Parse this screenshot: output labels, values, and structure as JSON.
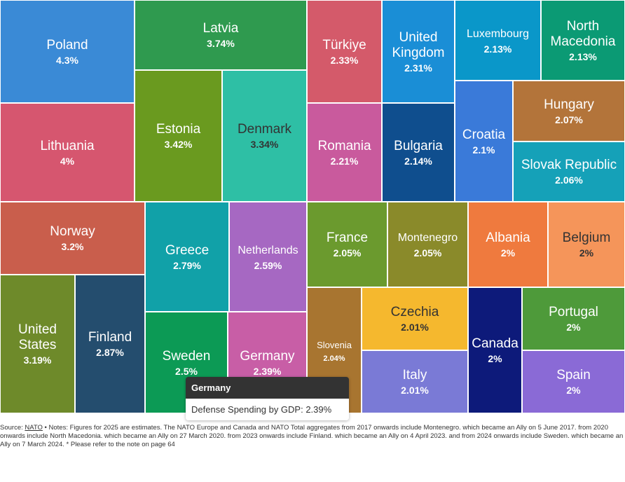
{
  "chart_data": {
    "type": "treemap",
    "categories": [
      "Poland",
      "Latvia",
      "Estonia",
      "Denmark",
      "Lithuania",
      "Türkiye",
      "United Kingdom",
      "Luxembourg",
      "North Macedonia",
      "Romania",
      "Bulgaria",
      "Croatia",
      "Hungary",
      "Slovak Republic",
      "Norway",
      "United States",
      "Finland",
      "Greece",
      "Netherlands",
      "Sweden",
      "Germany",
      "France",
      "Montenegro",
      "Albania",
      "Belgium",
      "Slovenia",
      "Czechia",
      "Italy",
      "Canada",
      "Portugal",
      "Spain"
    ],
    "values": [
      4.3,
      3.74,
      3.42,
      3.34,
      4,
      2.33,
      2.31,
      2.13,
      2.13,
      2.21,
      2.14,
      2.1,
      2.07,
      2.06,
      3.2,
      3.19,
      2.87,
      2.79,
      2.59,
      2.5,
      2.39,
      2.05,
      2.05,
      2,
      2,
      2.04,
      2.01,
      2.01,
      2,
      2,
      2
    ],
    "value_labels": [
      "4.3%",
      "3.74%",
      "3.42%",
      "3.34%",
      "4%",
      "2.33%",
      "2.31%",
      "2.13%",
      "2.13%",
      "2.21%",
      "2.14%",
      "2.1%",
      "2.07%",
      "2.06%",
      "3.2%",
      "3.19%",
      "2.87%",
      "2.79%",
      "2.59%",
      "2.5%",
      "2.39%",
      "2.05%",
      "2.05%",
      "2%",
      "2%",
      "2.04%",
      "2.01%",
      "2.01%",
      "2%",
      "2%",
      "2%"
    ],
    "colors": [
      "#3a8ad6",
      "#2f9a4f",
      "#6a9a1f",
      "#2ebfa5",
      "#d6566f",
      "#d45a6a",
      "#1a8ed6",
      "#0a97c9",
      "#0b9a74",
      "#c95a9d",
      "#0f4e8e",
      "#3a7ad9",
      "#b3743a",
      "#15a1b8",
      "#c95e4c",
      "#6e8a2a",
      "#244d6e",
      "#11a1a8",
      "#a668c2",
      "#0c9a55",
      "#c85ea6",
      "#6b9a2e",
      "#8a8a2a",
      "#ef7a3e",
      "#f5955a",
      "#a87530",
      "#f5b82e",
      "#7a7ad6",
      "#0d1a7a",
      "#4e9a3a",
      "#8a6ad6"
    ],
    "tooltip": {
      "title": "Germany",
      "text": "Defense Spending by GDP: 2.39%"
    },
    "source_label": "Source:",
    "source_link": "NATO",
    "notes": "• Notes: Figures for 2025 are estimates. The NATO Europe and Canada and NATO Total aggregates from 2017 onwards include Montenegro. which became an Ally on 5 June 2017. from 2020 onwards include North Macedonia. which became an Ally on 27 March 2020. from 2023 onwards include Finland. which became an Ally on 4 April 2023. and from 2024 onwards include Sweden. which became an Ally on 7 March 2024. * Please refer to the note on page 64"
  }
}
